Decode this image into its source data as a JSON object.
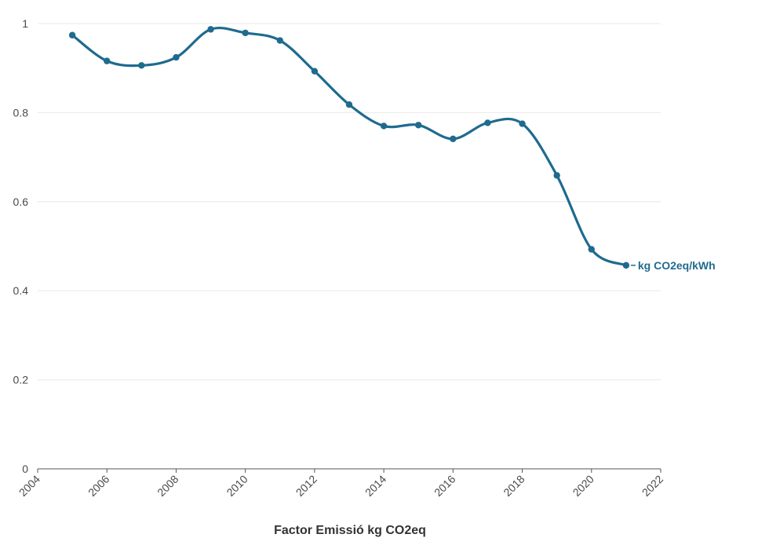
{
  "chart_data": {
    "type": "line",
    "title": "",
    "xlabel": "Factor Emissió kg CO2eq",
    "ylabel": "",
    "xlim": [
      2004,
      2022
    ],
    "ylim": [
      0,
      1
    ],
    "x_ticks": [
      "2004",
      "2006",
      "2008",
      "2010",
      "2012",
      "2014",
      "2016",
      "2018",
      "2020",
      "2022"
    ],
    "y_ticks": [
      "0",
      "0.2",
      "0.4",
      "0.6",
      "0.8",
      "1"
    ],
    "grid": true,
    "series": [
      {
        "name": "kg CO2eq/kWh",
        "color": "#1f6b8e",
        "x": [
          2005,
          2006,
          2007,
          2008,
          2009,
          2010,
          2011,
          2012,
          2013,
          2014,
          2015,
          2016,
          2017,
          2018,
          2019,
          2020,
          2021
        ],
        "values": [
          0.974,
          0.916,
          0.906,
          0.924,
          0.987,
          0.979,
          0.962,
          0.893,
          0.818,
          0.77,
          0.772,
          0.741,
          0.777,
          0.775,
          0.659,
          0.493,
          0.457
        ]
      }
    ]
  }
}
